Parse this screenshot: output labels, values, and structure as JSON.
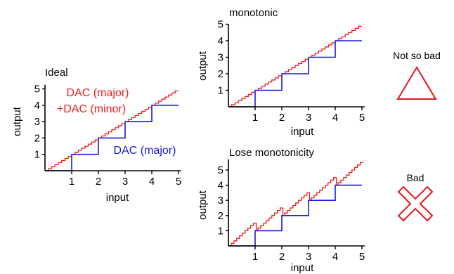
{
  "colors": {
    "axis": "#000000",
    "coarse": "#1a1adb",
    "fine": "#ee1c1c",
    "symbol": "#e0191f"
  },
  "panels": {
    "ideal": {
      "title": "Ideal",
      "xlabel": "input",
      "ylabel": "output",
      "x_ticks": [
        "1",
        "2",
        "3",
        "4",
        "5"
      ],
      "y_ticks": [
        "1",
        "2",
        "3",
        "4",
        "5"
      ],
      "label_fine_1": "DAC (major)",
      "label_fine_2": "+DAC (minor)",
      "label_coarse": "DAC (major)"
    },
    "monotonic": {
      "title": "monotonic",
      "xlabel": "input",
      "ylabel": "output",
      "x_ticks": [
        "1",
        "2",
        "3",
        "4",
        "5"
      ],
      "y_ticks": [
        "1",
        "2",
        "3",
        "4",
        "5"
      ],
      "verdict": "Not so bad"
    },
    "lose": {
      "title": "Lose  monotonicity",
      "xlabel": "input",
      "ylabel": "output",
      "x_ticks": [
        "1",
        "2",
        "3",
        "4",
        "5"
      ],
      "y_ticks": [
        "1",
        "2",
        "3",
        "4",
        "5"
      ],
      "verdict": "Bad"
    }
  }
}
